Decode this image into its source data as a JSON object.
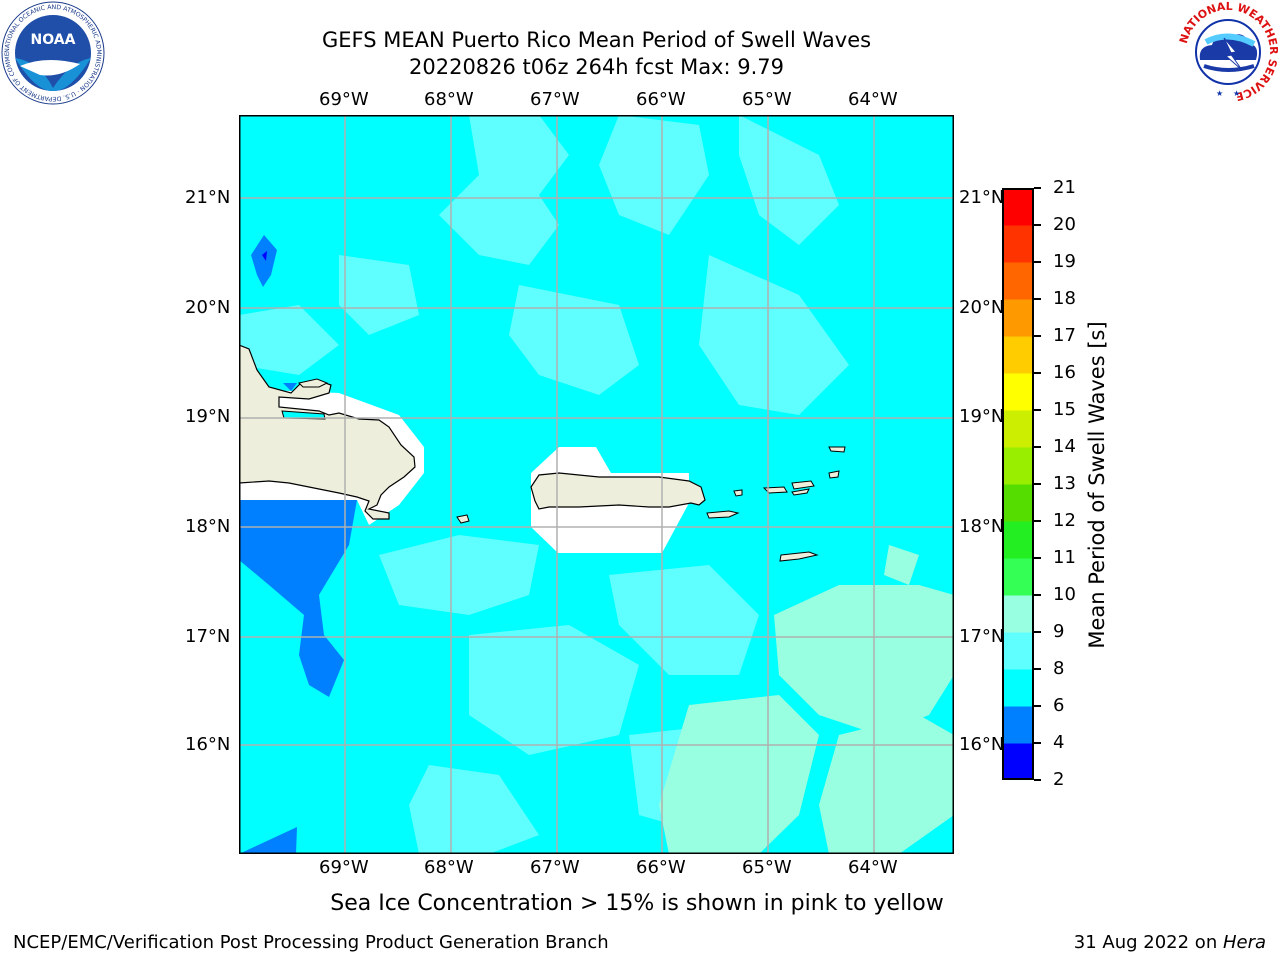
{
  "header": {
    "title_line1": "GEFS MEAN Puerto Rico Mean Period of Swell Waves",
    "title_line2": "20220826 t06z 264h fcst   Max: 9.79"
  },
  "map": {
    "lon_labels": [
      "69°W",
      "68°W",
      "67°W",
      "66°W",
      "65°W",
      "64°W"
    ],
    "lat_labels": [
      "21°N",
      "20°N",
      "19°N",
      "18°N",
      "17°N",
      "16°N"
    ],
    "ocean_color": "#00ffff",
    "land_color": "#eeeedd"
  },
  "colorbar": {
    "title": "Mean Period of Swell Waves [s]",
    "tick_labels": [
      "2",
      "4",
      "6",
      "8",
      "9",
      "10",
      "11",
      "12",
      "13",
      "14",
      "15",
      "16",
      "17",
      "18",
      "19",
      "20",
      "21"
    ],
    "colors": [
      "#0000ff",
      "#0080ff",
      "#00ffff",
      "#60ffff",
      "#98ffe0",
      "#33ff55",
      "#22ee22",
      "#55dd00",
      "#99ee00",
      "#ccee00",
      "#ffff00",
      "#ffcc00",
      "#ff9900",
      "#ff6600",
      "#ff3300",
      "#ff0000"
    ]
  },
  "subtitle": "Sea Ice Concentration > 15% is shown in pink to yellow",
  "footer": {
    "left": "NCEP/EMC/Verification Post Processing Product Generation Branch",
    "right_prefix": "31 Aug 2022 on ",
    "right_host": "Hera"
  },
  "logos": {
    "noaa_text": "NOAA",
    "noaa_ring": "NATIONAL OCEANIC AND ATMOSPHERIC ADMINISTRATION · U.S. DEPARTMENT OF COMMERCE",
    "nws_ring": "NATIONAL WEATHER SERVICE"
  }
}
